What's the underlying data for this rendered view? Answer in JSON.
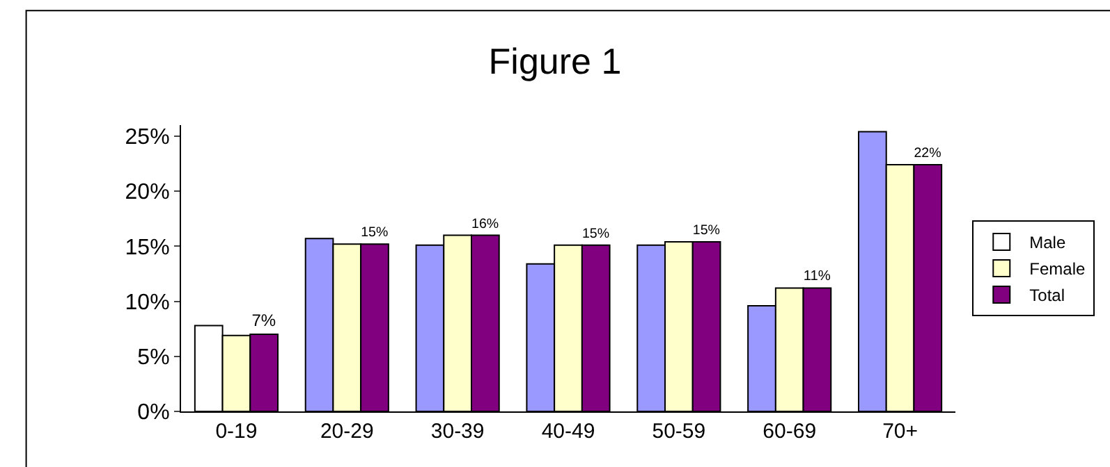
{
  "chart_data": {
    "type": "bar",
    "title": "Figure 1",
    "categories": [
      "0-19",
      "20-29",
      "30-39",
      "40-49",
      "50-59",
      "60-69",
      "70+"
    ],
    "series": [
      {
        "name": "Male",
        "color": "#9999ff",
        "colors": [
          "#ffffff",
          "#9999ff",
          "#9999ff",
          "#9999ff",
          "#9999ff",
          "#9999ff",
          "#9999ff"
        ],
        "values": [
          7.8,
          15.7,
          15.1,
          13.4,
          15.1,
          9.6,
          25.4
        ]
      },
      {
        "name": "Female",
        "color": "#ffffcc",
        "values": [
          6.9,
          15.2,
          16.0,
          15.1,
          15.4,
          11.2,
          22.4
        ]
      },
      {
        "name": "Total",
        "color": "#800080",
        "values": [
          7.0,
          15.2,
          16.0,
          15.1,
          15.4,
          11.2,
          22.4
        ],
        "value_labels": [
          "7%",
          "15%",
          "16%",
          "15%",
          "15%",
          "11%",
          "22%"
        ]
      }
    ],
    "ylim": [
      0,
      26
    ],
    "yticks": [
      {
        "value": 0,
        "label": "0%"
      },
      {
        "value": 5,
        "label": "5%"
      },
      {
        "value": 10,
        "label": "10%"
      },
      {
        "value": 15,
        "label": "15%"
      },
      {
        "value": 20,
        "label": "20%"
      },
      {
        "value": 25,
        "label": "25%"
      }
    ],
    "legend": "right"
  }
}
